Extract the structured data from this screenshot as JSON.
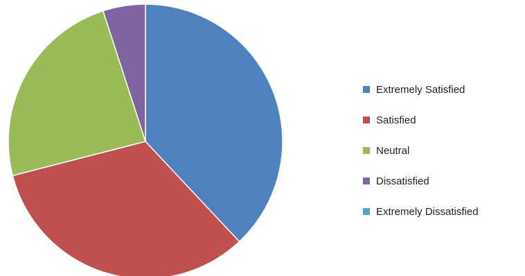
{
  "chart_data": {
    "type": "pie",
    "title": "",
    "categories": [
      "Extremely Satisfied",
      "Satisfied",
      "Neutral",
      "Dissatisfied",
      "Extremely Dissatisfied"
    ],
    "values": [
      38,
      33,
      24,
      5,
      0
    ],
    "colors": [
      "#4f81bd",
      "#c0504d",
      "#9bbb59",
      "#8064a2",
      "#4bacc6"
    ],
    "legend_position": "right"
  }
}
